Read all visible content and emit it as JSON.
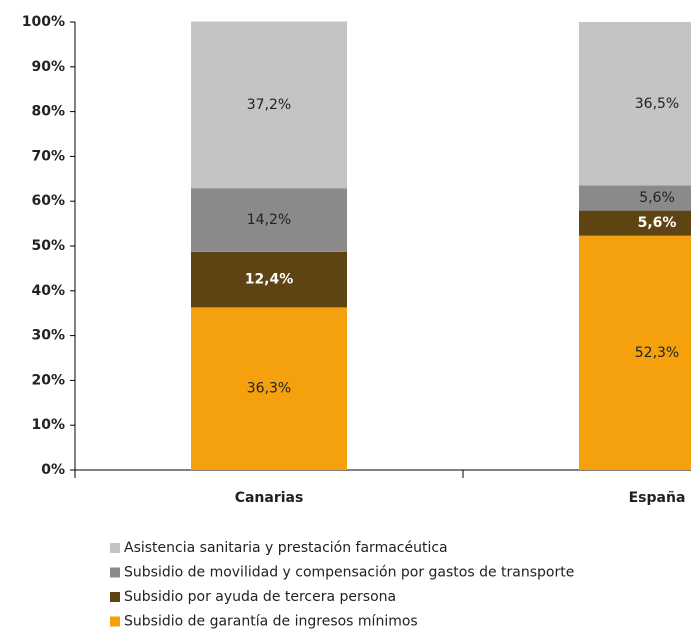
{
  "chart_data": {
    "type": "stacked_bar",
    "categories": [
      "Canarias",
      "España"
    ],
    "series": [
      {
        "name": "Subsidio de garantía de ingresos mínimos",
        "color": "#f5a10d",
        "values": [
          36.3,
          52.3
        ],
        "value_labels": [
          "36,3%",
          "52,3%"
        ]
      },
      {
        "name": "Subsidio por ayuda de tercera persona",
        "color": "#5e4412",
        "values": [
          12.4,
          5.6
        ],
        "value_labels": [
          "12,4%",
          "5,6%"
        ]
      },
      {
        "name": "Subsidio de movilidad y compensación por gastos de transporte",
        "color": "#8a8a8a",
        "values": [
          14.2,
          5.6
        ],
        "value_labels": [
          "14,2%",
          "5,6%"
        ]
      },
      {
        "name": "Asistencia sanitaria y prestación farmacéutica",
        "color": "#c4c4c4",
        "values": [
          37.2,
          36.5
        ],
        "value_labels": [
          "37,2%",
          "36,5%"
        ]
      }
    ],
    "ylim": [
      0,
      100
    ],
    "yticks": [
      {
        "value": 0,
        "label": "0%"
      },
      {
        "value": 10,
        "label": "10%"
      },
      {
        "value": 20,
        "label": "20%"
      },
      {
        "value": 30,
        "label": "30%"
      },
      {
        "value": 40,
        "label": "40%"
      },
      {
        "value": 50,
        "label": "50%"
      },
      {
        "value": 60,
        "label": "60%"
      },
      {
        "value": 70,
        "label": "70%"
      },
      {
        "value": 80,
        "label": "80%"
      },
      {
        "value": 90,
        "label": "90%"
      },
      {
        "value": 100,
        "label": "100%"
      }
    ],
    "grid": false
  }
}
